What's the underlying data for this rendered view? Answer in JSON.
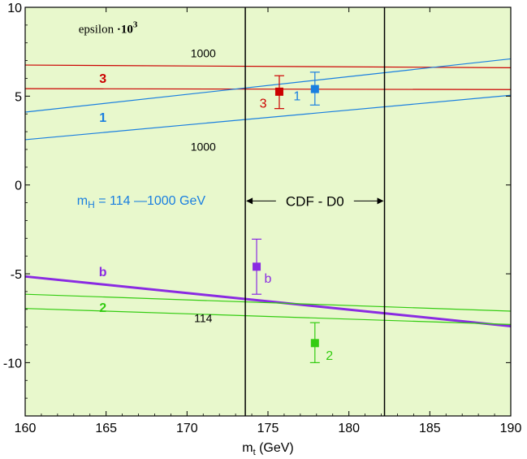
{
  "chart_data": {
    "type": "line",
    "xlabel": "m_t (GeV)",
    "xlabel_main": "m",
    "xlabel_sub": "t",
    "xlabel_unit": " (GeV)",
    "xlim": [
      160,
      190
    ],
    "ylim": [
      -13,
      10
    ],
    "xticks": [
      160,
      165,
      170,
      175,
      180,
      185,
      190
    ],
    "yticks": [
      10,
      5,
      0,
      -5,
      -10
    ],
    "ytick_labels": [
      "10",
      "5",
      "0",
      "-5",
      "-10"
    ],
    "background": "#e8f8cc",
    "title_main": "epsilon ",
    "title_dot": "·",
    "title_power": "10",
    "title_exp": "3",
    "series": [
      {
        "name": "3 (m_H=1000)",
        "color": "#cc0000",
        "width": 1.2,
        "x": [
          160,
          190
        ],
        "y": [
          6.75,
          6.6
        ]
      },
      {
        "name": "3 (m_H=114)",
        "color": "#cc0000",
        "width": 1.2,
        "x": [
          160,
          190
        ],
        "y": [
          5.42,
          5.37
        ]
      },
      {
        "name": "1 (m_H=1000)",
        "color": "#1a7fe0",
        "width": 1.2,
        "x": [
          160,
          190
        ],
        "y": [
          4.1,
          7.1
        ]
      },
      {
        "name": "1 (m_H=114)",
        "color": "#1a7fe0",
        "width": 1.2,
        "x": [
          160,
          190
        ],
        "y": [
          2.55,
          5.05
        ]
      },
      {
        "name": "b",
        "color": "#8a2be2",
        "width": 3,
        "x": [
          160,
          190
        ],
        "y": [
          -5.15,
          -7.95
        ]
      },
      {
        "name": "2 (m_H=114)",
        "color": "#33cc11",
        "width": 1.2,
        "x": [
          160,
          190
        ],
        "y": [
          -6.15,
          -7.1
        ]
      },
      {
        "name": "2 (m_H=1000)",
        "color": "#33cc11",
        "width": 1.2,
        "x": [
          160,
          190
        ],
        "y": [
          -6.95,
          -7.85
        ]
      }
    ],
    "vlines": [
      {
        "name": "cdf-d0-lower",
        "x": 173.6
      },
      {
        "name": "cdf-d0-upper",
        "x": 182.2
      }
    ],
    "points": [
      {
        "name": "3",
        "label": "3",
        "color": "#cc0000",
        "x": 175.7,
        "y": 5.25,
        "ylo": 4.3,
        "yhi": 6.15,
        "label_x": 174.7,
        "label_y": 4.55
      },
      {
        "name": "1",
        "label": "1",
        "color": "#1a7fe0",
        "x": 177.9,
        "y": 5.4,
        "ylo": 4.5,
        "yhi": 6.35,
        "label_x": 176.8,
        "label_y": 4.95
      },
      {
        "name": "b",
        "label": "b",
        "color": "#8a2be2",
        "x": 174.3,
        "y": -4.6,
        "ylo": -6.15,
        "yhi": -3.05,
        "label_x": 175.0,
        "label_y": -5.3
      },
      {
        "name": "2",
        "label": "2",
        "color": "#33cc11",
        "x": 177.9,
        "y": -8.9,
        "ylo": -10.0,
        "yhi": -7.75,
        "label_x": 178.8,
        "label_y": -9.65
      }
    ],
    "annotations": [
      {
        "name": "label-3",
        "text": "3",
        "color": "#cc0000",
        "x": 164.8,
        "y": 5.95,
        "bold": true,
        "size": 16,
        "anchor": "middle"
      },
      {
        "name": "label-1",
        "text": "1",
        "color": "#1a7fe0",
        "x": 164.8,
        "y": 3.75,
        "bold": true,
        "size": 16,
        "anchor": "middle"
      },
      {
        "name": "label-1000-top",
        "text": "1000",
        "color": "#000000",
        "x": 171.0,
        "y": 7.35,
        "bold": false,
        "size": 14,
        "anchor": "middle"
      },
      {
        "name": "label-1000-bottom",
        "text": "1000",
        "color": "#000000",
        "x": 171.0,
        "y": 2.1,
        "bold": false,
        "size": 14,
        "anchor": "middle"
      },
      {
        "name": "label-b",
        "text": "b",
        "color": "#8a2be2",
        "x": 164.8,
        "y": -4.95,
        "bold": true,
        "size": 16,
        "anchor": "middle"
      },
      {
        "name": "label-2",
        "text": "2",
        "color": "#33cc11",
        "x": 164.8,
        "y": -6.95,
        "bold": true,
        "size": 16,
        "anchor": "middle"
      },
      {
        "name": "label-114",
        "text": "114",
        "color": "#000000",
        "x": 171.0,
        "y": -7.55,
        "bold": false,
        "size": 14,
        "anchor": "middle"
      }
    ],
    "mh_label": {
      "text_main": "m",
      "text_sub": "H",
      "text_rest": " = 114 —1000 GeV",
      "color": "#1a7fe0"
    },
    "cdf_label": {
      "text": "CDF - D0",
      "color": "#000000"
    }
  }
}
